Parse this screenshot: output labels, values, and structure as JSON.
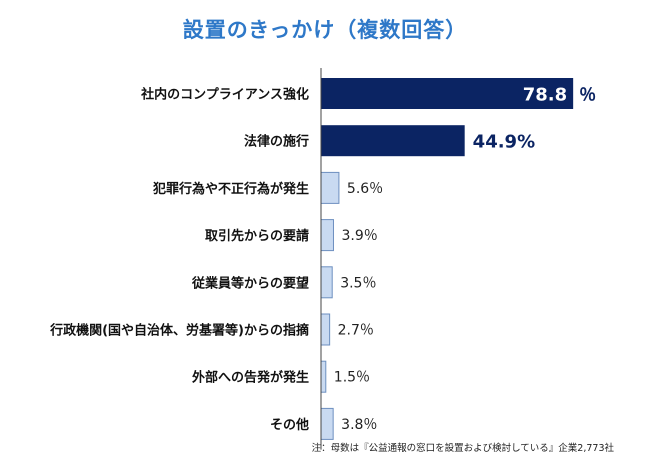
{
  "colors": {
    "title": "#2e78c8",
    "bar_dark": "#0b2463",
    "bar_light": "#c9daf1",
    "bar_light_stroke": "#6d8fc0",
    "axis": "#444444",
    "label": "#111111"
  },
  "chart_data": {
    "type": "bar",
    "orientation": "horizontal",
    "title": "設置のきっかけ（複数回答）",
    "xlim": [
      0,
      100
    ],
    "grid": false,
    "legend": "none",
    "categories": [
      "社内のコンプライアンス強化",
      "法律の施行",
      "犯罪行為や不正行為が発生",
      "取引先からの要請",
      "従業員等からの要望",
      "行政機関(国や自治体、労基署等)からの指摘",
      "外部への告発が発生",
      "その他"
    ],
    "values": [
      78.8,
      44.9,
      5.6,
      3.9,
      3.5,
      2.7,
      1.5,
      3.8
    ],
    "value_labels": [
      "78.8",
      "44.9%",
      "5.6％",
      "3.9％",
      "3.5％",
      "2.7％",
      "1.5％",
      "3.8％"
    ],
    "unit_suffix_first": "％",
    "highlight": [
      true,
      true,
      false,
      false,
      false,
      false,
      false,
      false
    ],
    "note": "注：母数は『公益通報の窓口を設置および検討している』企業2,773社"
  }
}
